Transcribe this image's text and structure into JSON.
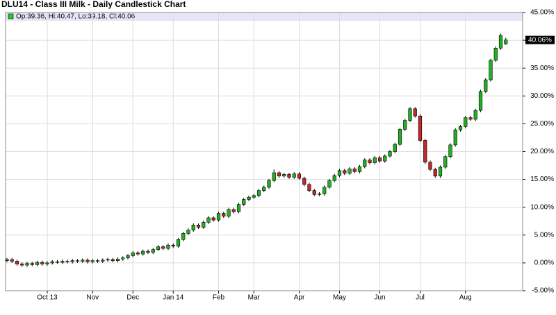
{
  "chart_data": {
    "type": "candlestick",
    "title": "DLU14 - Class III Milk - Daily Candlestick Chart",
    "info": "Op:39.36, Hi:40.47, Lo:39.18, Cl:40.06",
    "last_label": {
      "value": 40.06,
      "label": "40.06%"
    },
    "up_color": "#22b022",
    "down_color": "#c0282b",
    "ylim": [
      -5,
      45
    ],
    "yticks": [
      {
        "value": -5,
        "label": "-5.00%"
      },
      {
        "value": 0,
        "label": "0.00%"
      },
      {
        "value": 5,
        "label": "5.00%"
      },
      {
        "value": 10,
        "label": "10.00%"
      },
      {
        "value": 15,
        "label": "15.00%"
      },
      {
        "value": 20,
        "label": "20.00%"
      },
      {
        "value": 25,
        "label": "25.00%"
      },
      {
        "value": 30,
        "label": "30.00%"
      },
      {
        "value": 35,
        "label": "35.00%"
      },
      {
        "value": 40,
        "label": "40.00%"
      },
      {
        "value": 45,
        "label": "45.00%"
      }
    ],
    "grid": true,
    "categories": [
      null,
      null,
      null,
      null,
      null,
      null,
      null,
      null,
      "Oct 13",
      null,
      null,
      null,
      null,
      null,
      null,
      null,
      null,
      "Nov",
      null,
      null,
      null,
      null,
      null,
      null,
      null,
      "Dec",
      null,
      null,
      null,
      null,
      null,
      null,
      null,
      "Jan 14",
      null,
      null,
      null,
      null,
      null,
      null,
      null,
      null,
      "Feb",
      null,
      null,
      null,
      null,
      null,
      null,
      "Mar",
      null,
      null,
      null,
      null,
      null,
      null,
      null,
      null,
      "Apr",
      null,
      null,
      null,
      null,
      null,
      null,
      null,
      "May",
      null,
      null,
      null,
      null,
      null,
      null,
      null,
      "Jun",
      null,
      null,
      null,
      null,
      null,
      null,
      null,
      "Jul",
      null,
      null,
      null,
      null,
      null,
      null,
      null,
      null,
      "Aug",
      null,
      null,
      null,
      null,
      null,
      null,
      null,
      null
    ],
    "open": [
      0.4,
      0.6,
      0.3,
      -0.2,
      -0.4,
      -0.1,
      -0.3,
      0.1,
      -0.2,
      0.0,
      0.2,
      0.1,
      0.3,
      0.2,
      0.4,
      0.3,
      0.5,
      0.2,
      0.4,
      0.3,
      0.5,
      0.6,
      0.4,
      0.7,
      0.9,
      1.3,
      1.8,
      1.6,
      2.1,
      1.9,
      2.4,
      2.9,
      2.6,
      3.2,
      3.0,
      4.2,
      5.3,
      5.9,
      6.8,
      6.4,
      7.3,
      8.1,
      7.7,
      8.9,
      8.4,
      9.6,
      9.2,
      10.5,
      11.4,
      11.8,
      12.1,
      13.0,
      13.6,
      14.8,
      16.2,
      15.6,
      15.9,
      15.4,
      16.0,
      15.2,
      14.1,
      13.0,
      12.3,
      12.4,
      13.6,
      14.8,
      15.7,
      16.6,
      16.1,
      16.9,
      16.4,
      17.3,
      18.5,
      18.0,
      18.9,
      18.3,
      19.2,
      20.0,
      21.3,
      24.0,
      25.6,
      27.7,
      26.4,
      22.0,
      18.1,
      16.8,
      15.6,
      17.2,
      19.1,
      21.2,
      23.9,
      24.5,
      26.1,
      25.8,
      27.4,
      30.8,
      32.9,
      36.4,
      38.6,
      39.36
    ],
    "high": [
      0.9,
      0.9,
      0.6,
      0.1,
      0.2,
      0.2,
      0.4,
      0.4,
      0.3,
      0.5,
      0.5,
      0.6,
      0.6,
      0.7,
      0.7,
      0.8,
      0.8,
      0.7,
      0.7,
      0.8,
      0.9,
      0.9,
      1.0,
      1.2,
      1.6,
      2.1,
      2.1,
      2.4,
      2.4,
      2.7,
      3.2,
      3.2,
      3.5,
      3.5,
      4.5,
      5.6,
      6.2,
      7.1,
      7.1,
      7.6,
      8.4,
      8.4,
      9.2,
      9.2,
      9.9,
      9.9,
      10.8,
      11.7,
      12.1,
      12.4,
      13.3,
      13.9,
      15.1,
      16.8,
      16.5,
      16.2,
      16.2,
      16.3,
      16.3,
      15.5,
      14.4,
      13.3,
      12.7,
      13.9,
      15.1,
      16.0,
      16.9,
      16.9,
      17.2,
      17.2,
      17.6,
      18.8,
      18.8,
      19.2,
      19.2,
      19.5,
      20.3,
      21.6,
      24.3,
      25.9,
      28.0,
      28.0,
      26.7,
      22.3,
      18.4,
      17.1,
      17.5,
      19.4,
      21.5,
      24.2,
      24.8,
      26.4,
      26.4,
      27.7,
      31.1,
      33.2,
      36.7,
      38.9,
      41.2,
      40.47
    ],
    "low": [
      0.1,
      0.0,
      -0.5,
      -0.7,
      -0.7,
      -0.6,
      -0.6,
      -0.5,
      -0.5,
      -0.3,
      -0.2,
      -0.2,
      -0.1,
      -0.1,
      0.0,
      0.0,
      -0.1,
      -0.1,
      0.0,
      0.0,
      0.2,
      0.1,
      0.1,
      0.4,
      0.6,
      1.0,
      1.3,
      1.3,
      1.6,
      1.6,
      2.1,
      2.3,
      2.3,
      2.7,
      2.7,
      3.9,
      5.0,
      5.6,
      6.1,
      6.1,
      7.0,
      7.4,
      7.4,
      8.1,
      8.1,
      8.9,
      8.9,
      10.2,
      11.1,
      11.5,
      11.8,
      12.7,
      13.3,
      14.5,
      15.3,
      15.3,
      15.1,
      15.1,
      14.9,
      13.8,
      12.7,
      12.0,
      12.0,
      12.1,
      13.3,
      14.5,
      15.4,
      15.8,
      15.8,
      16.1,
      16.1,
      17.0,
      17.7,
      17.7,
      18.0,
      18.0,
      18.9,
      19.7,
      21.0,
      23.7,
      25.3,
      26.1,
      21.7,
      17.8,
      16.5,
      15.3,
      15.3,
      16.9,
      18.8,
      20.9,
      23.6,
      24.2,
      25.5,
      25.5,
      27.1,
      30.5,
      32.6,
      36.1,
      38.3,
      39.18
    ],
    "close": [
      0.6,
      0.3,
      -0.2,
      -0.4,
      -0.1,
      -0.3,
      0.1,
      -0.2,
      0.0,
      0.2,
      0.1,
      0.3,
      0.2,
      0.4,
      0.3,
      0.5,
      0.2,
      0.4,
      0.3,
      0.5,
      0.6,
      0.4,
      0.7,
      0.9,
      1.3,
      1.8,
      1.6,
      2.1,
      1.9,
      2.4,
      2.9,
      2.6,
      3.2,
      3.0,
      4.2,
      5.3,
      5.9,
      6.8,
      6.4,
      7.3,
      8.1,
      7.7,
      8.9,
      8.4,
      9.6,
      9.2,
      10.5,
      11.4,
      11.8,
      12.1,
      13.0,
      13.6,
      14.8,
      16.2,
      15.6,
      15.9,
      15.4,
      16.0,
      15.2,
      14.1,
      13.0,
      12.3,
      12.4,
      13.6,
      14.8,
      15.7,
      16.6,
      16.1,
      16.9,
      16.4,
      17.3,
      18.5,
      18.0,
      18.9,
      18.3,
      19.2,
      20.0,
      21.3,
      24.0,
      25.6,
      27.7,
      26.4,
      22.0,
      18.1,
      16.8,
      15.6,
      17.2,
      19.1,
      21.2,
      23.9,
      24.5,
      26.1,
      25.8,
      27.4,
      30.8,
      32.9,
      36.4,
      38.6,
      40.9,
      40.06
    ]
  }
}
